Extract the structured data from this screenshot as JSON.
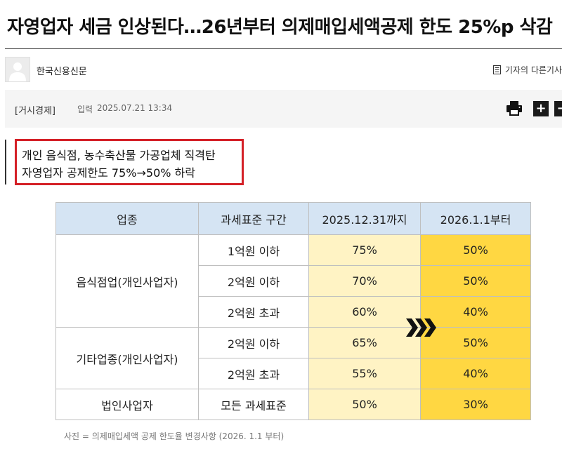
{
  "article": {
    "title": "자영업자 세금 인상된다…26년부터 의제매입세액공제 한도 25%p 삭감",
    "source": "한국신용신문",
    "other_articles_link": "기자의 다른기사",
    "section": "[거시경제]",
    "date_label": "입력",
    "date_value": "2025.07.21 13:34",
    "zoom_in": "+",
    "zoom_out": "−"
  },
  "highlight": {
    "line1": "개인 음식점, 농수축산물 가공업체 직격탄",
    "line2": "자영업자 공제한도 75%→50% 하락",
    "border_color": "#d42027"
  },
  "table": {
    "headers": [
      "업종",
      "과세표준 구간",
      "2025.12.31까지",
      "2026.1.1부터"
    ],
    "groups": [
      {
        "category": "음식점업(개인사업자)",
        "rows": [
          {
            "bracket": "1억원 이하",
            "before": "75%",
            "after": "50%"
          },
          {
            "bracket": "2억원 이하",
            "before": "70%",
            "after": "50%"
          },
          {
            "bracket": "2억원 초과",
            "before": "60%",
            "after": "40%"
          }
        ]
      },
      {
        "category": "기타업종(개인사업자)",
        "rows": [
          {
            "bracket": "2억원 이하",
            "before": "65%",
            "after": "50%"
          },
          {
            "bracket": "2억원 초과",
            "before": "55%",
            "after": "40%"
          }
        ]
      },
      {
        "category": "법인사업자",
        "rows": [
          {
            "bracket": "모든 과세표준",
            "before": "50%",
            "after": "30%"
          }
        ]
      }
    ],
    "colors": {
      "header": "#d5e4f3",
      "before": "#fff3c4",
      "after": "#ffd742"
    }
  },
  "caption": "사진 = 의제매입세액 공제 한도율 변경사항 (2026. 1.1 부터)",
  "icons": [
    "avatar-placeholder-icon",
    "document-icon",
    "print-icon",
    "chevron-arrows-icon"
  ]
}
